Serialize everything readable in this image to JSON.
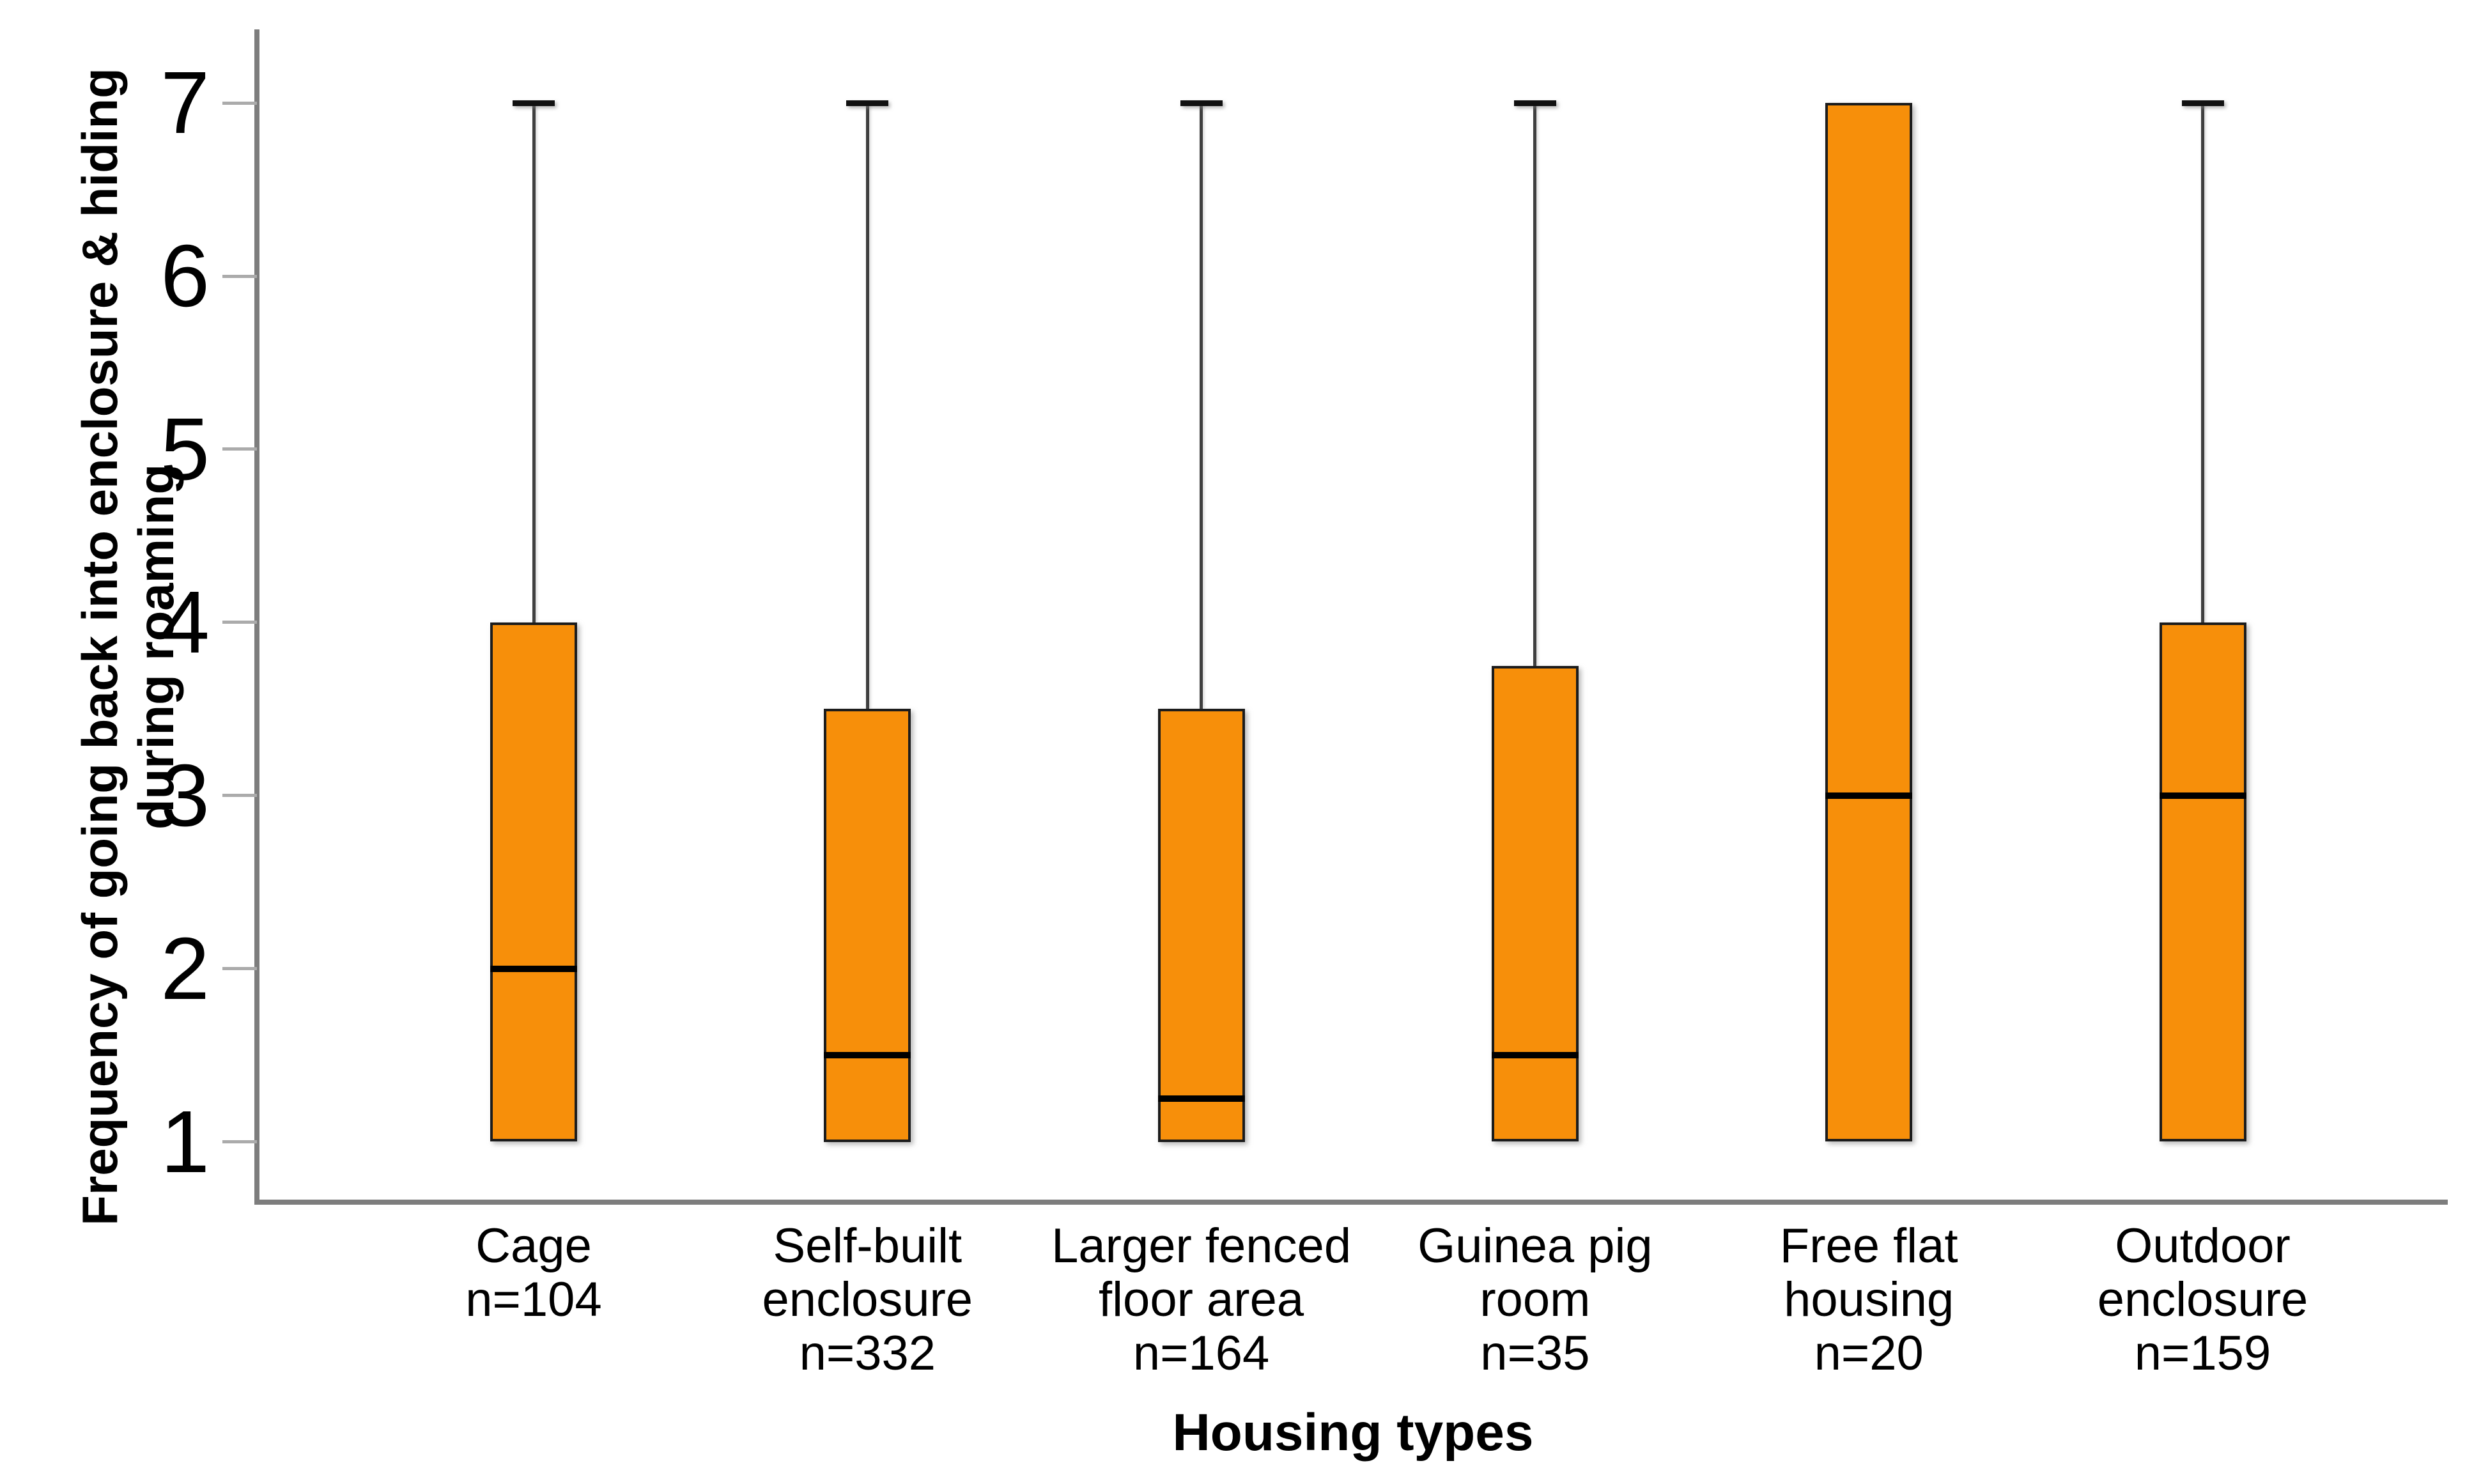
{
  "y_axis": {
    "title_lines": [
      "Frequency of going back into enclosure & hiding",
      "during roaming"
    ],
    "tick_labels": [
      "7",
      "6",
      "5",
      "4",
      "3",
      "2",
      "1"
    ]
  },
  "x_axis": {
    "title": "Housing types"
  },
  "chart_data": {
    "type": "boxplot",
    "title": "",
    "xlabel": "Housing types",
    "ylabel": "Frequency of going back into enclosure & hiding during roaming",
    "ylim": [
      1,
      7
    ],
    "yticks": [
      1,
      2,
      3,
      4,
      5,
      6,
      7
    ],
    "grid": false,
    "legend": false,
    "colors": {
      "box_fill": "#F78F0A",
      "box_border": "#1C1C1C",
      "median": "#000000",
      "whisker": "#3F3F3F",
      "axis": "#7D7D7D",
      "tick": "#ABABAB",
      "text": "#000000",
      "background": "#FFFFFF"
    },
    "categories": [
      "Cage",
      "Self-built enclosure",
      "Larger fenced floor area",
      "Guinea pig room",
      "Free flat housing",
      "Outdoor enclosure"
    ],
    "series": [
      {
        "name": "Cage",
        "label_lines": [
          "Cage"
        ],
        "n": 104,
        "n_label": "n=104",
        "min": 1,
        "q1": 1,
        "median": 2,
        "q3": 4,
        "max": 7
      },
      {
        "name": "Self-built enclosure",
        "label_lines": [
          "Self-built",
          "enclosure"
        ],
        "n": 332,
        "n_label": "n=332",
        "min": 1,
        "q1": 1,
        "median": 1.5,
        "q3": 3.5,
        "max": 7
      },
      {
        "name": "Larger fenced floor area",
        "label_lines": [
          "Larger fenced",
          "floor area"
        ],
        "n": 164,
        "n_label": "n=164",
        "min": 1,
        "q1": 1,
        "median": 1.25,
        "q3": 3.5,
        "max": 7
      },
      {
        "name": "Guinea pig room",
        "label_lines": [
          "Guinea pig",
          "room"
        ],
        "n": 35,
        "n_label": "n=35",
        "min": 1,
        "q1": 1,
        "median": 1.5,
        "q3": 3.75,
        "max": 7
      },
      {
        "name": "Free flat housing",
        "label_lines": [
          "Free flat",
          "housing"
        ],
        "n": 20,
        "n_label": "n=20",
        "min": 1,
        "q1": 1,
        "median": 3,
        "q3": 7,
        "max": 7
      },
      {
        "name": "Outdoor enclosure",
        "label_lines": [
          "Outdoor",
          "enclosure"
        ],
        "n": 159,
        "n_label": "n=159",
        "min": 1,
        "q1": 1,
        "median": 3,
        "q3": 4,
        "max": 7
      }
    ]
  }
}
